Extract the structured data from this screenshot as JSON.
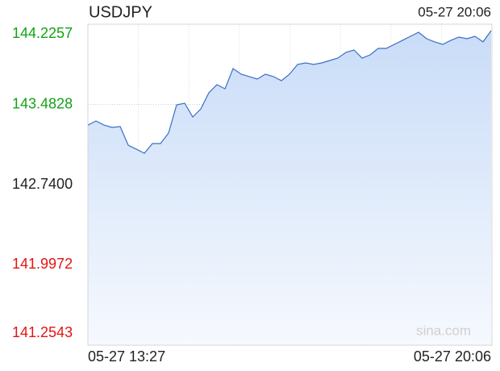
{
  "chart_data": {
    "type": "line",
    "title": "USDJPY",
    "timestamp": "05-27 20:06",
    "watermark": "sina.com",
    "x_labels": [
      "05-27 13:27",
      "05-27 20:06"
    ],
    "series": [
      {
        "name": "USDJPY",
        "color": "#3a6ec6",
        "values": [
          143.292,
          143.33,
          143.292,
          143.27,
          143.278,
          143.106,
          143.069,
          143.031,
          143.121,
          143.121,
          143.218,
          143.479,
          143.494,
          143.367,
          143.442,
          143.591,
          143.666,
          143.628,
          143.815,
          143.763,
          143.741,
          143.718,
          143.763,
          143.741,
          143.703,
          143.763,
          143.853,
          143.867,
          143.853,
          143.867,
          143.89,
          143.912,
          143.965,
          143.987,
          143.912,
          143.942,
          144.002,
          144.002,
          144.039,
          144.076,
          144.114,
          144.151,
          144.091,
          144.062,
          144.039,
          144.076,
          144.106,
          144.091,
          144.114,
          144.062,
          144.166
        ]
      }
    ],
    "ylim": [
      141.2543,
      144.2257
    ],
    "yticks": [
      144.2257,
      143.4828,
      {
        "value": 142.74,
        "label": "142.7400"
      },
      141.9972,
      141.2543
    ],
    "up_color": "#13a313",
    "down_color": "#e31414",
    "grid": true
  }
}
